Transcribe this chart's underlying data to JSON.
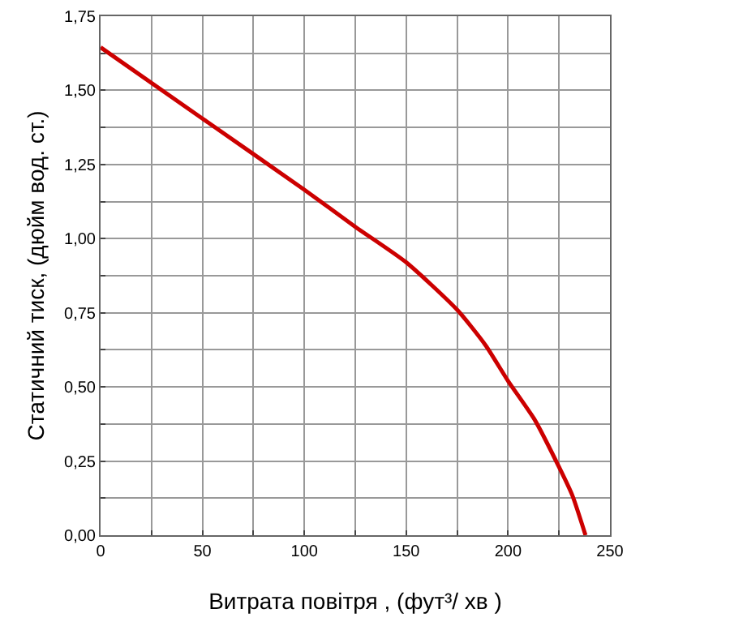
{
  "chart_data": {
    "type": "line",
    "xlabel": "Витрата повітря , (фут³/ хв )",
    "ylabel": "Статичний тиск, (дюйм вод. ст.)",
    "x": [
      0,
      50,
      100,
      125,
      150,
      175,
      189,
      200,
      213,
      225,
      231.5,
      238
    ],
    "series": [
      {
        "color": "#cc0000",
        "values": [
          1.645,
          1.405,
          1.165,
          1.04,
          0.92,
          0.76,
          0.64,
          0.52,
          0.39,
          0.23,
          0.135,
          0
        ]
      }
    ],
    "xlim": [
      0,
      250
    ],
    "ylim": [
      0,
      1.75
    ],
    "xticks": [
      0,
      {
        "value": 25,
        "label": null
      },
      50,
      {
        "value": 75,
        "label": null
      },
      100,
      {
        "value": 125,
        "label": null
      },
      150,
      {
        "value": 175,
        "label": null
      },
      200,
      {
        "value": 225,
        "label": null
      },
      250
    ],
    "yticks": [
      {
        "value": 0,
        "label": "0,00"
      },
      {
        "value": 0.125,
        "label": null
      },
      {
        "value": 0.25,
        "label": "0,25"
      },
      {
        "value": 0.375,
        "label": null
      },
      {
        "value": 0.5,
        "label": "0,50"
      },
      {
        "value": 0.625,
        "label": null
      },
      {
        "value": 0.75,
        "label": "0,75"
      },
      {
        "value": 0.875,
        "label": null
      },
      {
        "value": 1,
        "label": "1,00"
      },
      {
        "value": 1.125,
        "label": null
      },
      {
        "value": 1.25,
        "label": "1,25"
      },
      {
        "value": 1.375,
        "label": null
      },
      {
        "value": 1.5,
        "label": "1,50"
      },
      {
        "value": 1.625,
        "label": null
      },
      {
        "value": 1.75,
        "label": "1,75"
      }
    ],
    "grid": true,
    "marker": "none",
    "line_style": "solid"
  }
}
